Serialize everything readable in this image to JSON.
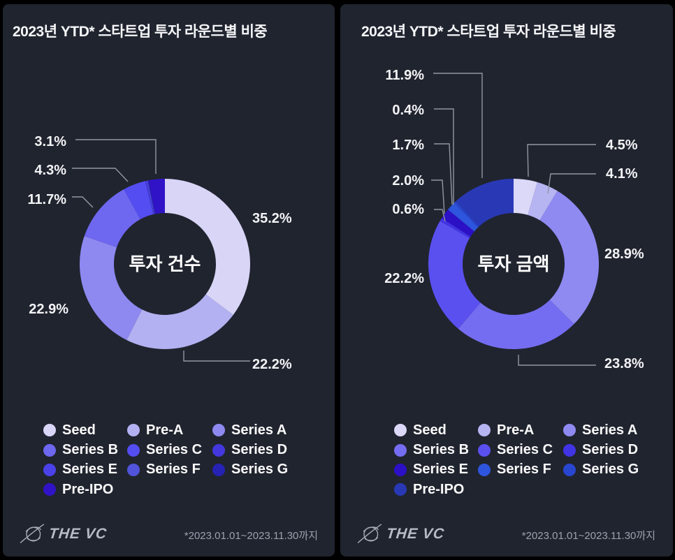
{
  "colors": {
    "page_bg": "#000000",
    "panel_bg": "#20242f",
    "title_text": "#f6f7f9",
    "label_text": "#f3f4f6",
    "leader_line": "#9097a3",
    "legend_text": "#fafafa",
    "footnote_text": "#9aa2af",
    "logo_color": "#b6bbc5",
    "center_text": "#ffffff"
  },
  "panels": [
    {
      "title": "2023년 YTD* 스타트업 투자 라운드별 비중",
      "center_label": "투자 건수",
      "logo_text": "THE VC",
      "footnote": "*2023.01.01~2023.11.30까지"
    },
    {
      "title": "2023년 YTD* 스타트업 투자 라운드별 비중",
      "center_label": "투자 금액",
      "logo_text": "THE VC",
      "footnote": "*2023.01.01~2023.11.30까지"
    }
  ],
  "chart_data": [
    {
      "type": "pie",
      "variant": "donut",
      "title": "2023년 YTD* 스타트업 투자 라운드별 비중",
      "center_label": "투자 건수",
      "legend_position": "bottom",
      "series": [
        {
          "name": "Seed",
          "value": 35.2,
          "label": "35.2%",
          "color": "#d8d5f7"
        },
        {
          "name": "Pre-A",
          "value": 22.2,
          "label": "22.2%",
          "color": "#b4b1f2"
        },
        {
          "name": "Series A",
          "value": 22.9,
          "label": "22.9%",
          "color": "#8e89f0"
        },
        {
          "name": "Series B",
          "value": 11.7,
          "label": "11.7%",
          "color": "#6e67f0"
        },
        {
          "name": "Series C",
          "value": 4.3,
          "label": "4.3%",
          "color": "#544df1"
        },
        {
          "name": "Series D",
          "value": 0.2,
          "label": null,
          "color": "#4338de"
        },
        {
          "name": "Series E",
          "value": 0.2,
          "label": null,
          "color": "#4a42e8"
        },
        {
          "name": "Series F",
          "value": 0.1,
          "label": null,
          "color": "#5154da"
        },
        {
          "name": "Series G",
          "value": 0.1,
          "label": null,
          "color": "#2522b4"
        },
        {
          "name": "Pre-IPO",
          "value": 3.1,
          "label": "3.1%",
          "color": "#3113c7"
        }
      ]
    },
    {
      "type": "pie",
      "variant": "donut",
      "title": "2023년 YTD* 스타트업 투자 라운드별 비중",
      "center_label": "투자 금액",
      "legend_position": "bottom",
      "series": [
        {
          "name": "Seed",
          "value": 4.5,
          "label": "4.5%",
          "color": "#dbd8f8"
        },
        {
          "name": "Pre-A",
          "value": 4.1,
          "label": "4.1%",
          "color": "#b7b4f2"
        },
        {
          "name": "Series A",
          "value": 28.9,
          "label": "28.9%",
          "color": "#8f8af2"
        },
        {
          "name": "Series B",
          "value": 23.8,
          "label": "23.8%",
          "color": "#756df1"
        },
        {
          "name": "Series C",
          "value": 22.2,
          "label": "22.2%",
          "color": "#5a50f0"
        },
        {
          "name": "Series D",
          "value": 0.6,
          "label": "0.6%",
          "color": "#4134e4"
        },
        {
          "name": "Series E",
          "value": 2.0,
          "label": "2.0%",
          "color": "#2c10c6"
        },
        {
          "name": "Series F",
          "value": 1.7,
          "label": "1.7%",
          "color": "#2e55dd"
        },
        {
          "name": "Series G",
          "value": 0.4,
          "label": "0.4%",
          "color": "#2946d0"
        },
        {
          "name": "Pre-IPO",
          "value": 11.9,
          "label": "11.9%",
          "color": "#2939b6"
        }
      ]
    }
  ]
}
